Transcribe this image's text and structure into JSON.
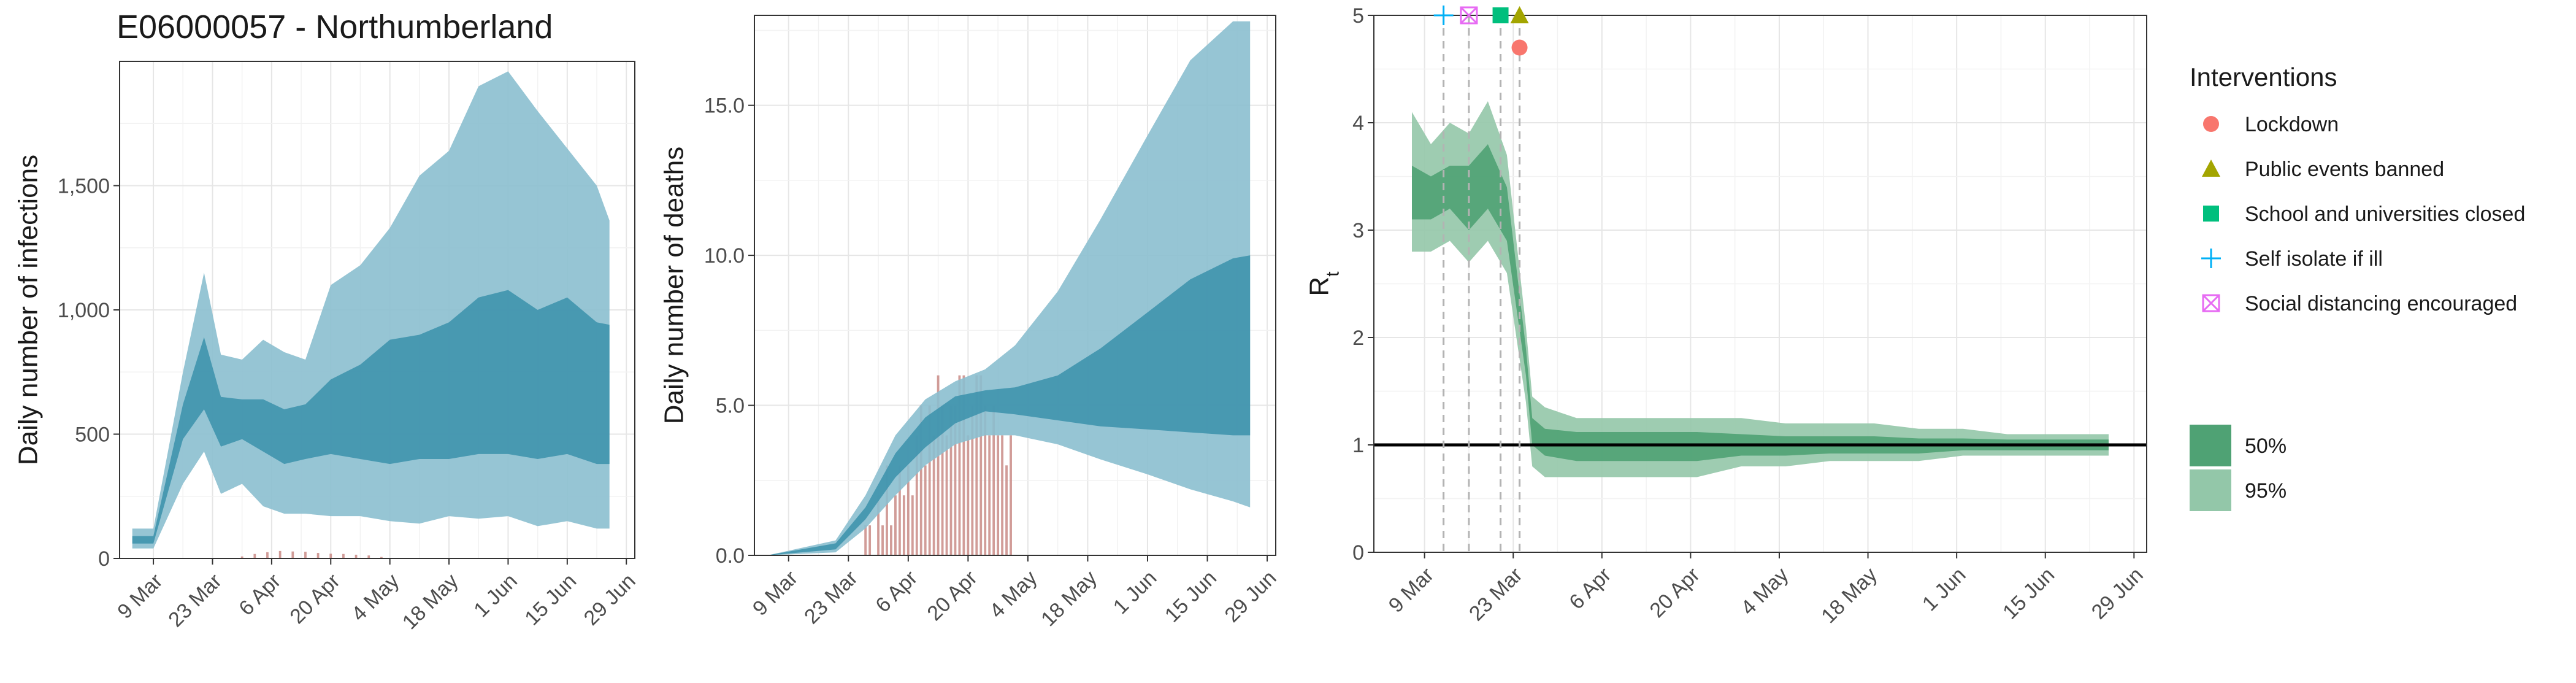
{
  "title": "E06000057 - Northumberland",
  "colors": {
    "infection_ci95": "#8bbfcf",
    "infection_ci50": "#3f93ad",
    "observed_bar": "#c98b86",
    "rt_ci95": "#93c7a9",
    "rt_ci50": "#4fa274",
    "rt_reference_line": "#000000",
    "int_lockdown": "#f8766d",
    "int_public_events": "#a3a500",
    "int_schools": "#00bf7d",
    "int_self_isolate": "#00b0f6",
    "int_social_distancing": "#e76bf3"
  },
  "chart_data": [
    {
      "type": "area",
      "title": "E06000057 - Northumberland",
      "ylabel": "Daily number of infections",
      "xlabel": "",
      "x_tick_labels": [
        "9 Mar",
        "23 Mar",
        "6 Apr",
        "20 Apr",
        "4 May",
        "18 May",
        "1 Jun",
        "15 Jun",
        "29 Jun"
      ],
      "y_tick_labels": [
        "0",
        "500",
        "1,000",
        "1,500"
      ],
      "ylim": [
        0,
        2000
      ],
      "grid": true,
      "series": [
        {
          "band": "95%",
          "x": [
            "2020-03-04",
            "2020-03-09",
            "2020-03-16",
            "2020-03-21",
            "2020-03-25",
            "2020-03-30",
            "2020-04-04",
            "2020-04-09",
            "2020-04-14",
            "2020-04-20",
            "2020-04-27",
            "2020-05-04",
            "2020-05-11",
            "2020-05-18",
            "2020-05-25",
            "2020-06-01",
            "2020-06-08",
            "2020-06-15",
            "2020-06-22",
            "2020-06-25"
          ],
          "lower": [
            40,
            40,
            300,
            430,
            260,
            300,
            210,
            180,
            180,
            170,
            170,
            150,
            140,
            170,
            160,
            170,
            130,
            150,
            120,
            120
          ],
          "upper": [
            120,
            120,
            750,
            1150,
            820,
            800,
            880,
            830,
            800,
            1100,
            1180,
            1330,
            1540,
            1640,
            1900,
            1960,
            1800,
            1650,
            1500,
            1360
          ]
        },
        {
          "band": "50%",
          "x": [
            "2020-03-04",
            "2020-03-09",
            "2020-03-16",
            "2020-03-21",
            "2020-03-25",
            "2020-03-30",
            "2020-04-04",
            "2020-04-09",
            "2020-04-14",
            "2020-04-20",
            "2020-04-27",
            "2020-05-04",
            "2020-05-11",
            "2020-05-18",
            "2020-05-25",
            "2020-06-01",
            "2020-06-08",
            "2020-06-15",
            "2020-06-22",
            "2020-06-25"
          ],
          "lower": [
            60,
            60,
            480,
            600,
            450,
            480,
            430,
            380,
            400,
            420,
            400,
            380,
            400,
            400,
            420,
            420,
            400,
            420,
            380,
            380
          ],
          "upper": [
            90,
            90,
            620,
            890,
            650,
            640,
            640,
            600,
            620,
            720,
            780,
            880,
            900,
            950,
            1050,
            1080,
            1000,
            1050,
            950,
            940
          ]
        }
      ],
      "observed_cases": {
        "x": [
          "2020-03-30",
          "2020-04-02",
          "2020-04-05",
          "2020-04-08",
          "2020-04-11",
          "2020-04-14",
          "2020-04-17",
          "2020-04-20",
          "2020-04-23",
          "2020-04-26",
          "2020-04-29",
          "2020-05-02"
        ],
        "values": [
          8,
          18,
          25,
          30,
          28,
          27,
          22,
          19,
          18,
          15,
          12,
          6
        ]
      }
    },
    {
      "type": "area",
      "ylabel": "Daily number of deaths",
      "xlabel": "",
      "x_tick_labels": [
        "9 Mar",
        "23 Mar",
        "6 Apr",
        "20 Apr",
        "4 May",
        "18 May",
        "1 Jun",
        "15 Jun",
        "29 Jun"
      ],
      "y_tick_labels": [
        "0.0",
        "5.0",
        "10.0",
        "15.0"
      ],
      "ylim": [
        0,
        18
      ],
      "grid": true,
      "series": [
        {
          "band": "95%",
          "x": [
            "2020-03-04",
            "2020-03-20",
            "2020-03-27",
            "2020-04-03",
            "2020-04-10",
            "2020-04-17",
            "2020-04-24",
            "2020-05-01",
            "2020-05-11",
            "2020-05-21",
            "2020-06-01",
            "2020-06-11",
            "2020-06-21",
            "2020-06-25"
          ],
          "lower": [
            0,
            0.1,
            0.9,
            2.0,
            3.0,
            3.7,
            4.0,
            4.0,
            3.7,
            3.2,
            2.7,
            2.2,
            1.8,
            1.6
          ],
          "upper": [
            0,
            0.5,
            2.0,
            4.0,
            5.2,
            5.8,
            6.2,
            7.0,
            8.8,
            11.2,
            14.0,
            16.5,
            17.8,
            17.8
          ]
        },
        {
          "band": "50%",
          "x": [
            "2020-03-04",
            "2020-03-20",
            "2020-03-27",
            "2020-04-03",
            "2020-04-10",
            "2020-04-17",
            "2020-04-24",
            "2020-05-01",
            "2020-05-11",
            "2020-05-21",
            "2020-06-01",
            "2020-06-11",
            "2020-06-21",
            "2020-06-25"
          ],
          "lower": [
            0,
            0.2,
            1.2,
            2.6,
            3.6,
            4.4,
            4.8,
            4.7,
            4.5,
            4.3,
            4.2,
            4.1,
            4.0,
            4.0
          ],
          "upper": [
            0,
            0.4,
            1.6,
            3.4,
            4.6,
            5.3,
            5.5,
            5.6,
            6.0,
            6.9,
            8.1,
            9.2,
            9.9,
            10.0
          ]
        }
      ],
      "observed_deaths": {
        "x": [
          "2020-03-27",
          "2020-03-28",
          "2020-03-29",
          "2020-03-30",
          "2020-03-31",
          "2020-04-01",
          "2020-04-02",
          "2020-04-03",
          "2020-04-04",
          "2020-04-05",
          "2020-04-06",
          "2020-04-07",
          "2020-04-08",
          "2020-04-09",
          "2020-04-10",
          "2020-04-11",
          "2020-04-12",
          "2020-04-13",
          "2020-04-14",
          "2020-04-15",
          "2020-04-16",
          "2020-04-17",
          "2020-04-18",
          "2020-04-19",
          "2020-04-20",
          "2020-04-21",
          "2020-04-22",
          "2020-04-23",
          "2020-04-24",
          "2020-04-25",
          "2020-04-26",
          "2020-04-27",
          "2020-04-28",
          "2020-04-29",
          "2020-04-30"
        ],
        "values": [
          1,
          1,
          0,
          2,
          1,
          3,
          1,
          2,
          3,
          2,
          3,
          2,
          4,
          5,
          3,
          5,
          4,
          6,
          5,
          4,
          5,
          5,
          6,
          6,
          4,
          5,
          6,
          6,
          5,
          4,
          5,
          4,
          4,
          3,
          4
        ]
      }
    },
    {
      "type": "area",
      "ylabel": "R",
      "ylabel_subscript": "t",
      "xlabel": "",
      "x_tick_labels": [
        "9 Mar",
        "23 Mar",
        "6 Apr",
        "20 Apr",
        "4 May",
        "18 May",
        "1 Jun",
        "15 Jun",
        "29 Jun"
      ],
      "y_tick_labels": [
        "0",
        "1",
        "2",
        "3",
        "4",
        "5"
      ],
      "ylim": [
        0,
        5
      ],
      "grid": true,
      "reference_line_y": 1,
      "series": [
        {
          "band": "95%",
          "x": [
            "2020-03-07",
            "2020-03-10",
            "2020-03-13",
            "2020-03-16",
            "2020-03-19",
            "2020-03-22",
            "2020-03-25",
            "2020-03-26",
            "2020-03-28",
            "2020-04-02",
            "2020-04-07",
            "2020-04-14",
            "2020-04-21",
            "2020-04-28",
            "2020-05-05",
            "2020-05-12",
            "2020-05-19",
            "2020-05-26",
            "2020-06-02",
            "2020-06-09",
            "2020-06-16",
            "2020-06-23",
            "2020-06-25"
          ],
          "lower": [
            2.8,
            2.8,
            2.9,
            2.7,
            2.9,
            2.6,
            1.4,
            0.8,
            0.7,
            0.7,
            0.7,
            0.7,
            0.7,
            0.8,
            0.8,
            0.85,
            0.85,
            0.85,
            0.9,
            0.9,
            0.9,
            0.9,
            0.9
          ],
          "upper": [
            4.1,
            3.8,
            4.0,
            3.9,
            4.2,
            3.7,
            2.1,
            1.45,
            1.35,
            1.25,
            1.25,
            1.25,
            1.25,
            1.25,
            1.2,
            1.2,
            1.2,
            1.15,
            1.15,
            1.1,
            1.1,
            1.1,
            1.1
          ]
        },
        {
          "band": "50%",
          "x": [
            "2020-03-07",
            "2020-03-10",
            "2020-03-13",
            "2020-03-16",
            "2020-03-19",
            "2020-03-22",
            "2020-03-25",
            "2020-03-26",
            "2020-03-28",
            "2020-04-02",
            "2020-04-07",
            "2020-04-14",
            "2020-04-21",
            "2020-04-28",
            "2020-05-05",
            "2020-05-12",
            "2020-05-19",
            "2020-05-26",
            "2020-06-02",
            "2020-06-09",
            "2020-06-16",
            "2020-06-23",
            "2020-06-25"
          ],
          "lower": [
            3.1,
            3.1,
            3.2,
            3.0,
            3.2,
            2.9,
            1.65,
            1.0,
            0.9,
            0.85,
            0.85,
            0.85,
            0.85,
            0.9,
            0.9,
            0.92,
            0.92,
            0.92,
            0.95,
            0.95,
            0.95,
            0.95,
            0.95
          ],
          "upper": [
            3.6,
            3.5,
            3.6,
            3.6,
            3.8,
            3.4,
            1.9,
            1.25,
            1.15,
            1.12,
            1.12,
            1.12,
            1.12,
            1.1,
            1.08,
            1.08,
            1.08,
            1.06,
            1.06,
            1.05,
            1.05,
            1.05,
            1.05
          ]
        }
      ],
      "interventions": [
        {
          "name": "Lockdown",
          "date": "2020-03-24",
          "y": 4.7,
          "symbol": "circle",
          "color_key": "int_lockdown"
        },
        {
          "name": "Public events banned",
          "date": "2020-03-24",
          "y": 5.0,
          "symbol": "triangle",
          "color_key": "int_public_events"
        },
        {
          "name": "School and universities closed",
          "date": "2020-03-21",
          "y": 5.0,
          "symbol": "square",
          "color_key": "int_schools"
        },
        {
          "name": "Self isolate if ill",
          "date": "2020-03-12",
          "y": 5.0,
          "symbol": "plus",
          "color_key": "int_self_isolate"
        },
        {
          "name": "Social distancing encouraged",
          "date": "2020-03-16",
          "y": 5.0,
          "symbol": "boxcross",
          "color_key": "int_social_distancing"
        }
      ]
    }
  ],
  "legend": {
    "title": "Interventions",
    "placement": "right",
    "interventions": [
      {
        "label": "Lockdown",
        "symbol": "circle",
        "color_key": "int_lockdown"
      },
      {
        "label": "Public events banned",
        "symbol": "triangle",
        "color_key": "int_public_events"
      },
      {
        "label": "School and universities closed",
        "symbol": "square",
        "color_key": "int_schools"
      },
      {
        "label": "Self isolate if ill",
        "symbol": "plus",
        "color_key": "int_self_isolate"
      },
      {
        "label": "Social distancing encouraged",
        "symbol": "boxcross",
        "color_key": "int_social_distancing"
      }
    ],
    "bands": [
      {
        "label": "50%",
        "color_key": "rt_ci50"
      },
      {
        "label": "95%",
        "color_key": "rt_ci95"
      }
    ]
  }
}
